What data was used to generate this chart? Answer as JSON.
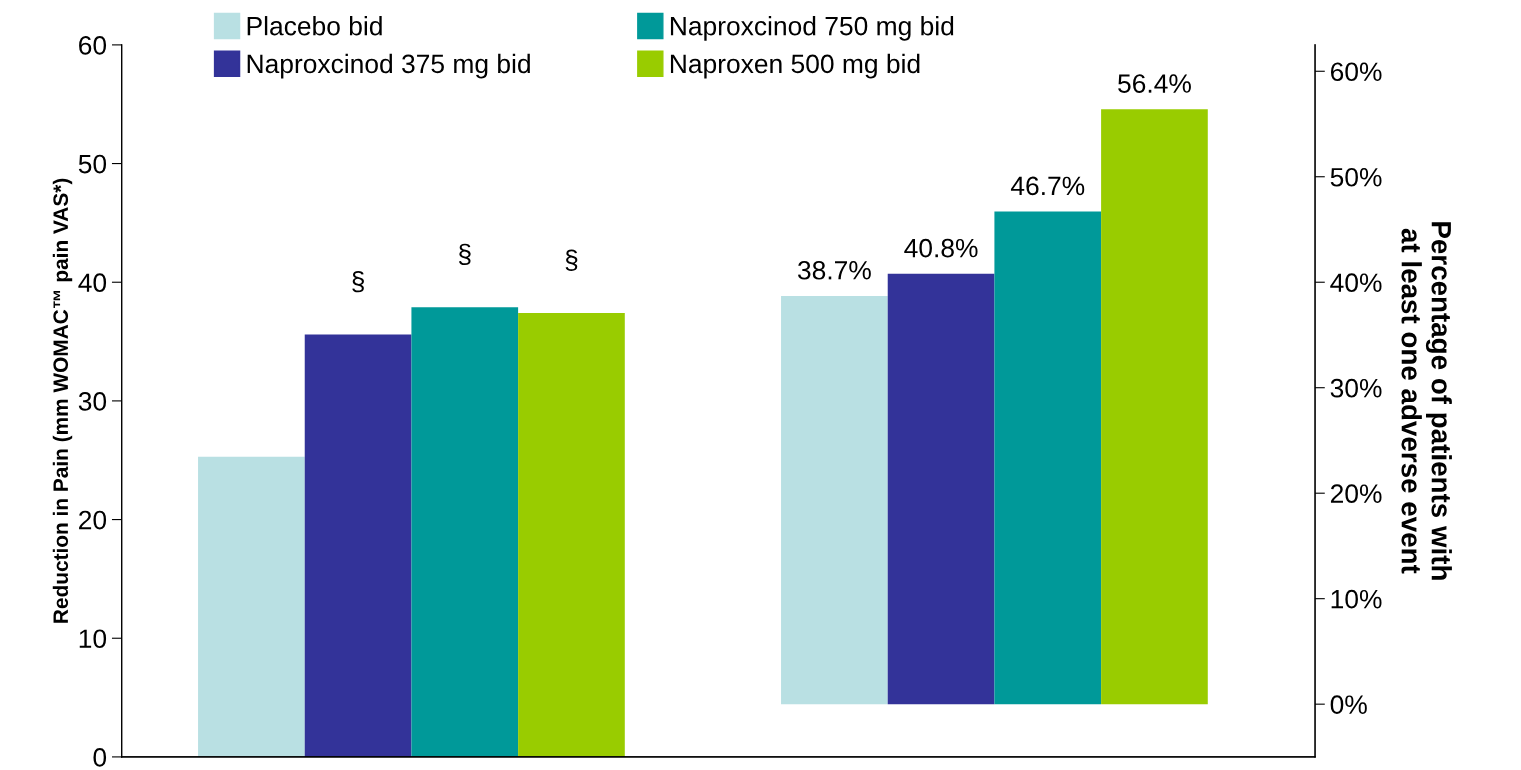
{
  "chart_data": {
    "type": "bar",
    "categories": [
      null,
      null
    ],
    "ylabel": "Reduction in Pain (mm WOMAC™ pain VAS*)",
    "y2label": "Percentage of patients with\nat least one adverse event",
    "ylim": [
      0,
      60
    ],
    "yticks": [
      0,
      10,
      20,
      30,
      40,
      50,
      60
    ],
    "y2lim": [
      -5,
      62.5
    ],
    "y2ticks": [
      {
        "value": 0,
        "label": "0%"
      },
      {
        "value": 10,
        "label": "10%"
      },
      {
        "value": 20,
        "label": "20%"
      },
      {
        "value": 30,
        "label": "30%"
      },
      {
        "value": 40,
        "label": "40%"
      },
      {
        "value": 50,
        "label": "50%"
      },
      {
        "value": 60,
        "label": "60%"
      }
    ],
    "legend": "top",
    "grid": false,
    "series": [
      {
        "name": "Placebo bid",
        "color": "#b9e0e3",
        "values": [
          25.3,
          null
        ],
        "value_labels": [
          null,
          null
        ]
      },
      {
        "name": "Naproxcinod 375 mg bid",
        "color": "#333399",
        "values": [
          35.6,
          null
        ],
        "value_labels": [
          "§",
          null
        ]
      },
      {
        "name": "Naproxcinod 750 mg bid",
        "color": "#009999",
        "values": [
          37.9,
          null
        ],
        "value_labels": [
          "§",
          null
        ]
      },
      {
        "name": "Naproxen 500 mg bid",
        "color": "#99cc00",
        "values": [
          37.4,
          null
        ],
        "value_labels": [
          "§",
          null
        ]
      },
      {
        "color": "#b9e0e3",
        "axis": "y2",
        "values": [
          null,
          38.7
        ],
        "value_labels": [
          null,
          "38.7%"
        ]
      },
      {
        "color": "#333399",
        "axis": "y2",
        "values": [
          null,
          40.8
        ],
        "value_labels": [
          null,
          "40.8%"
        ]
      },
      {
        "color": "#009999",
        "axis": "y2",
        "values": [
          null,
          46.7
        ],
        "value_labels": [
          null,
          "46.7%"
        ]
      },
      {
        "color": "#99cc00",
        "axis": "y2",
        "values": [
          null,
          56.4
        ],
        "value_labels": [
          null,
          "56.4%"
        ]
      }
    ]
  }
}
